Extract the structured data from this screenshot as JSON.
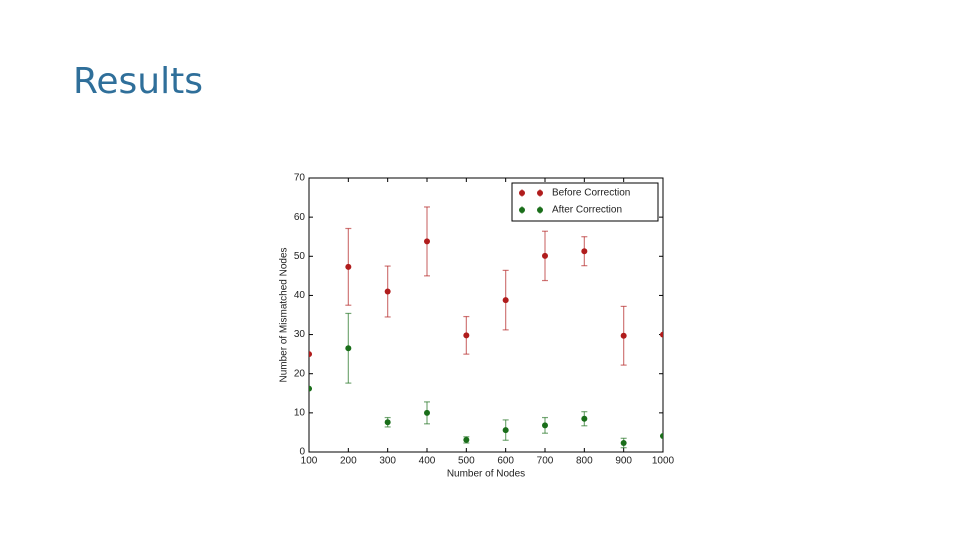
{
  "slide_title": "Results",
  "chart_data": {
    "type": "errorbar-scatter",
    "x_label": "Number of Nodes",
    "y_label": "Number of Mismatched Nodes",
    "x": [
      100,
      200,
      300,
      400,
      500,
      600,
      700,
      800,
      900,
      1000
    ],
    "series": [
      {
        "name": "Before Correction",
        "color": "#b01c1c",
        "values": [
          25,
          47.3,
          41,
          53.8,
          29.8,
          38.8,
          50.1,
          51.3,
          29.7,
          30
        ],
        "errors": [
          0,
          9.8,
          6.5,
          8.8,
          4.8,
          7.6,
          6.3,
          3.7,
          7.5,
          0
        ]
      },
      {
        "name": "After Correction",
        "color": "#1a6e1a",
        "values": [
          16.2,
          26.5,
          7.6,
          10,
          3.1,
          5.6,
          6.8,
          8.5,
          2.3,
          4.1
        ],
        "errors": [
          0,
          8.9,
          1.2,
          2.8,
          0.8,
          2.6,
          2,
          1.8,
          1.2,
          0
        ]
      }
    ],
    "xlim": [
      100,
      1000
    ],
    "xticks": [
      100,
      200,
      300,
      400,
      500,
      600,
      700,
      800,
      900,
      1000
    ],
    "ylim": [
      0,
      70
    ],
    "yticks": [
      0,
      10,
      20,
      30,
      40,
      50,
      60,
      70
    ],
    "legend": "upper right"
  }
}
